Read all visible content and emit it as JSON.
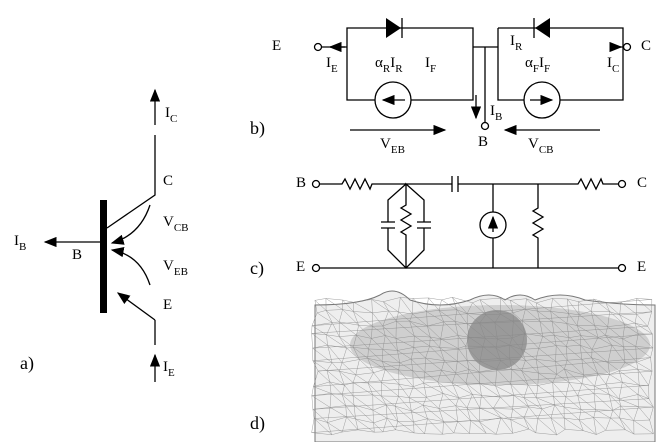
{
  "panels": {
    "a": {
      "label": "a)",
      "texts": [
        [
          {
            "text": "I"
          },
          {
            "sub": "C"
          }
        ],
        [
          {
            "text": "C"
          }
        ],
        [
          {
            "text": "V"
          },
          {
            "sub": "CB"
          }
        ],
        [
          {
            "text": "I"
          },
          {
            "sub": "B"
          }
        ],
        [
          {
            "text": "B"
          }
        ],
        [
          {
            "text": "V"
          },
          {
            "sub": "EB"
          }
        ],
        [
          {
            "text": "E"
          }
        ],
        [
          {
            "text": "I"
          },
          {
            "sub": "E"
          }
        ]
      ]
    },
    "b": {
      "label": "b)",
      "texts": [
        [
          {
            "text": "E"
          }
        ],
        [
          {
            "text": "I"
          },
          {
            "sub": "E"
          }
        ],
        [
          {
            "text": "I"
          },
          {
            "sub": "F"
          }
        ],
        [
          {
            "text": "α"
          },
          {
            "sub": "R"
          },
          {
            "text": "I"
          },
          {
            "sub": "R"
          }
        ],
        [
          {
            "text": "I"
          },
          {
            "sub": "B"
          }
        ],
        [
          {
            "text": "B"
          }
        ],
        [
          {
            "text": "I"
          },
          {
            "sub": "R"
          }
        ],
        [
          {
            "text": "α"
          },
          {
            "sub": "F"
          },
          {
            "text": "I"
          },
          {
            "sub": "F"
          }
        ],
        [
          {
            "text": "I"
          },
          {
            "sub": "C"
          }
        ],
        [
          {
            "text": "C"
          }
        ],
        [
          {
            "text": "V"
          },
          {
            "sub": "EB"
          }
        ],
        [
          {
            "text": "V"
          },
          {
            "sub": "CB"
          }
        ]
      ]
    },
    "c": {
      "label": "c)",
      "texts": [
        [
          {
            "text": "B"
          }
        ],
        [
          {
            "text": "C"
          }
        ],
        [
          {
            "text": "E"
          }
        ],
        [
          {
            "text": "E"
          }
        ]
      ]
    },
    "d": {
      "label": "d)",
      "texts": []
    }
  }
}
